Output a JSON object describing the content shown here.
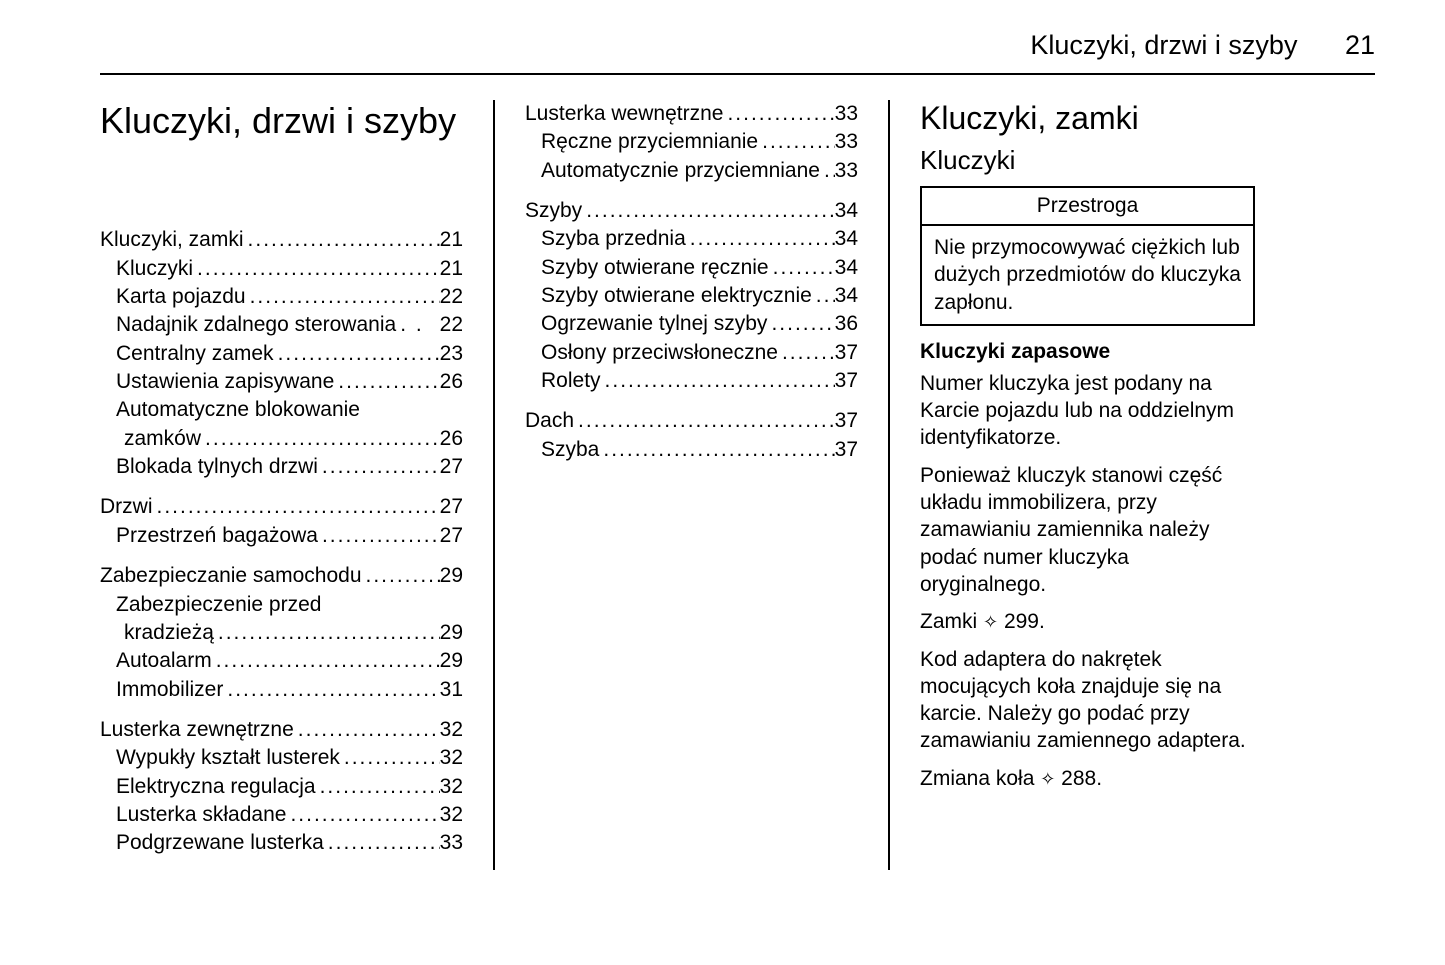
{
  "header": {
    "title": "Kluczyki, drzwi i szyby",
    "page": "21"
  },
  "chapter_title": "Kluczyki, drzwi i szyby",
  "toc_col1": [
    {
      "group": [
        {
          "label": "Kluczyki, zamki",
          "page": "21",
          "level": 0
        },
        {
          "label": "Kluczyki",
          "page": "21",
          "level": 1
        },
        {
          "label": "Karta pojazdu",
          "page": "22",
          "level": 1
        },
        {
          "label": "Nadajnik zdalnego sterowania",
          "page": "22",
          "level": 1,
          "dotstyle": "sparse"
        },
        {
          "label": "Centralny zamek",
          "page": "23",
          "level": 1
        },
        {
          "label": "Ustawienia zapisywane",
          "page": "26",
          "level": 1
        },
        {
          "label": "Automatyczne blokowanie",
          "level": 1,
          "nowrap_to": true
        },
        {
          "label": "zamków",
          "page": "26",
          "level": 1,
          "wrap": true
        },
        {
          "label": "Blokada tylnych drzwi",
          "page": "27",
          "level": 1
        }
      ]
    },
    {
      "group": [
        {
          "label": "Drzwi",
          "page": "27",
          "level": 0
        },
        {
          "label": "Przestrzeń bagażowa",
          "page": "27",
          "level": 1
        }
      ]
    },
    {
      "group": [
        {
          "label": "Zabezpieczanie samochodu",
          "page": "29",
          "level": 0
        },
        {
          "label": "Zabezpieczenie przed",
          "level": 1,
          "nowrap_to": true
        },
        {
          "label": "kradzieżą",
          "page": "29",
          "level": 1,
          "wrap": true
        },
        {
          "label": "Autoalarm",
          "page": "29",
          "level": 1
        },
        {
          "label": "Immobilizer",
          "page": "31",
          "level": 1
        }
      ]
    },
    {
      "group": [
        {
          "label": "Lusterka zewnętrzne",
          "page": "32",
          "level": 0
        },
        {
          "label": "Wypukły kształt lusterek",
          "page": "32",
          "level": 1
        },
        {
          "label": "Elektryczna regulacja",
          "page": "32",
          "level": 1
        },
        {
          "label": "Lusterka składane",
          "page": "32",
          "level": 1
        },
        {
          "label": "Podgrzewane lusterka",
          "page": "33",
          "level": 1
        }
      ]
    }
  ],
  "toc_col2": [
    {
      "group": [
        {
          "label": "Lusterka wewnętrzne",
          "page": "33",
          "level": 0
        },
        {
          "label": "Ręczne przyciemnianie",
          "page": "33",
          "level": 1
        },
        {
          "label": "Automatycznie przyciemniane",
          "page": "33",
          "level": 1
        }
      ]
    },
    {
      "group": [
        {
          "label": "Szyby",
          "page": "34",
          "level": 0
        },
        {
          "label": "Szyba przednia",
          "page": "34",
          "level": 1
        },
        {
          "label": "Szyby otwierane ręcznie",
          "page": "34",
          "level": 1
        },
        {
          "label": "Szyby otwierane elektrycznie",
          "page": "34",
          "level": 1
        },
        {
          "label": "Ogrzewanie tylnej szyby",
          "page": "36",
          "level": 1
        },
        {
          "label": "Osłony przeciwsłoneczne",
          "page": "37",
          "level": 1
        },
        {
          "label": "Rolety",
          "page": "37",
          "level": 1
        }
      ]
    },
    {
      "group": [
        {
          "label": "Dach",
          "page": "37",
          "level": 0
        },
        {
          "label": "Szyba",
          "page": "37",
          "level": 1
        }
      ]
    }
  ],
  "col3": {
    "h1": "Kluczyki, zamki",
    "h2": "Kluczyki",
    "caution_title": "Przestroga",
    "caution_body": "Nie przymocowywać ciężkich lub dużych przedmiotów do kluczyka zapłonu.",
    "sub1": "Kluczyki zapasowe",
    "p1": "Numer kluczyka jest podany na Karcie pojazdu lub na oddzielnym identyfikatorze.",
    "p2": "Ponieważ kluczyk stanowi część układu immobilizera, przy zamawianiu zamiennika należy podać numer kluczyka oryginalnego.",
    "p3_pre": "Zamki ",
    "p3_ref": "299.",
    "p4": "Kod adaptera do nakrętek mocujących koła znajduje się na karcie. Należy go podać przy zamawianiu zamiennego adaptera.",
    "p5_pre": "Zmiana koła ",
    "p5_ref": "288."
  },
  "dots": "....................................................................",
  "sparse_dots": " . . "
}
